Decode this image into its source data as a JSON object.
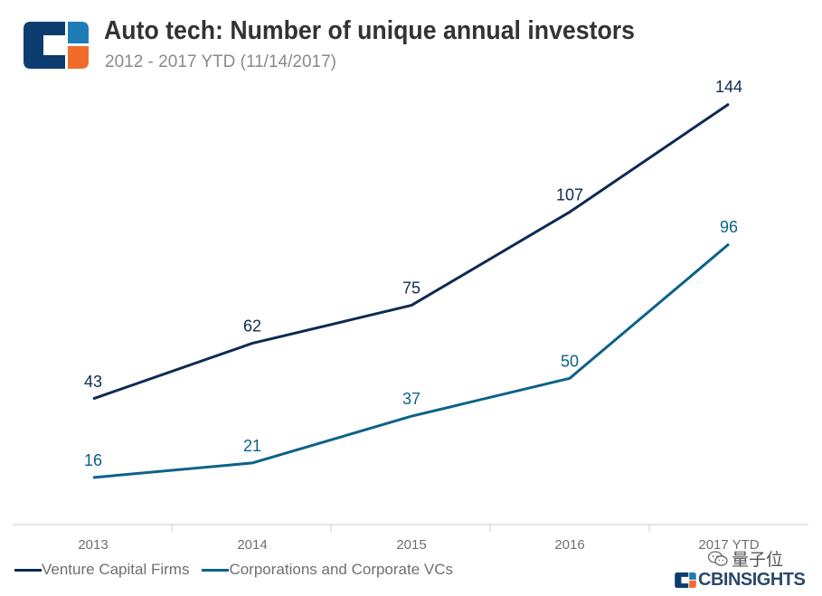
{
  "header": {
    "title": "Auto tech: Number of unique annual investors",
    "subtitle": "2012 - 2017 YTD (11/14/2017)"
  },
  "icons": {
    "logo": "cb-insights-logo",
    "watermark": "wechat-icon"
  },
  "watermark_text": "量子位",
  "brand_text": "CBINSIGHTS",
  "colors": {
    "vc": "#0d2b52",
    "corp": "#0b6288",
    "axis": "#cccccc",
    "logo_navy": "#0d3c6e",
    "logo_blue": "#1e7bb8",
    "logo_orange": "#f26b2b"
  },
  "chart_data": {
    "type": "line",
    "title": "Auto tech: Number of unique annual investors",
    "subtitle": "2012 - 2017 YTD (11/14/2017)",
    "categories": [
      "2013",
      "2014",
      "2015",
      "2016",
      "2017 YTD"
    ],
    "series": [
      {
        "name": "Venture Capital Firms",
        "values": [
          43,
          62,
          75,
          107,
          144
        ],
        "color": "#0d2b52"
      },
      {
        "name": "Corporations and Corporate VCs",
        "values": [
          16,
          21,
          37,
          50,
          96
        ],
        "color": "#0b6288"
      }
    ],
    "ylim": [
      0,
      144
    ],
    "grid": false,
    "legend": "bottom-left"
  }
}
